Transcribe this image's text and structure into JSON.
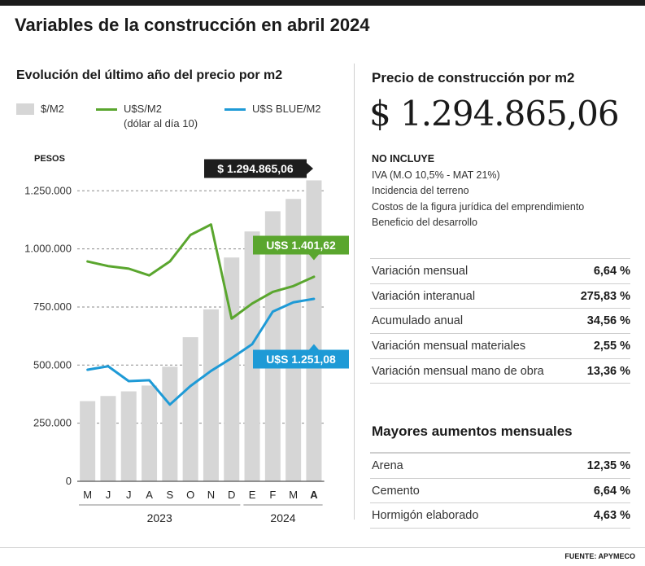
{
  "title": "Variables de la construcción en abril 2024",
  "chart_section": {
    "subtitle": "Evolución del último año del precio por m2"
  },
  "legend": {
    "bar_label": "$/M2",
    "line1_label": "U$S/M2",
    "line1_note": "(dólar al día 10)",
    "line2_label": "U$S BLUE/M2"
  },
  "colors": {
    "bars": "#d6d6d6",
    "usd_line": "#5aa62e",
    "blue_line": "#1e9ad6",
    "dark_callout": "#1e1e1e"
  },
  "chart_data": {
    "type": "bar",
    "y_unit_label": "PESOS",
    "categories": [
      "M",
      "J",
      "J",
      "A",
      "S",
      "O",
      "N",
      "D",
      "E",
      "F",
      "M",
      "A"
    ],
    "years": [
      {
        "label": "2023",
        "from": 0,
        "to": 7
      },
      {
        "label": "2024",
        "from": 8,
        "to": 11
      }
    ],
    "ylim": [
      0,
      1300000
    ],
    "yticks": [
      0,
      250000,
      500000,
      750000,
      1000000,
      1250000
    ],
    "ytick_labels": [
      "0",
      "250.000",
      "500.000",
      "750.000",
      "1.000.000",
      "1.250.000"
    ],
    "grid": "dashed",
    "series": [
      {
        "name": "$/M2",
        "kind": "bar",
        "values": [
          345000,
          367000,
          387000,
          412000,
          493000,
          620000,
          740000,
          963000,
          1075000,
          1162000,
          1215000,
          1294865.06
        ]
      },
      {
        "name": "U$S/M2",
        "kind": "line",
        "values": [
          946000,
          926000,
          915000,
          886000,
          946000,
          1060000,
          1105000,
          700000,
          765000,
          815000,
          840000,
          880000
        ]
      },
      {
        "name": "U$S BLUE/M2",
        "kind": "line",
        "values": [
          480000,
          495000,
          431000,
          435000,
          330000,
          410000,
          475000,
          530000,
          590000,
          730000,
          770000,
          785000
        ]
      }
    ],
    "callouts": [
      {
        "text": "$ 1.294.865,06"
      },
      {
        "text": "U$S 1.401,62"
      },
      {
        "text": "U$S 1.251,08"
      }
    ]
  },
  "price_section": {
    "title": "Precio de construcción por m2",
    "price": "$ 1.294.865,06",
    "excludes_head": "NO INCLUYE",
    "excludes": [
      "IVA (M.O 10,5% - MAT 21%)",
      "Incidencia del terreno",
      "Costos de la figura jurídica del emprendimiento",
      "Beneficio del desarrollo"
    ]
  },
  "stats": [
    {
      "label": "Variación mensual",
      "value": "6,64 %"
    },
    {
      "label": "Variación interanual",
      "value": "275,83 %"
    },
    {
      "label": "Acumulado anual",
      "value": "34,56 %"
    },
    {
      "label": "Variación mensual materiales",
      "value": "2,55 %"
    },
    {
      "label": "Variación mensual mano de obra",
      "value": "13,36 %"
    }
  ],
  "increases_section": {
    "title": "Mayores aumentos mensuales",
    "items": [
      {
        "label": "Arena",
        "value": "12,35 %"
      },
      {
        "label": "Cemento",
        "value": "6,64 %"
      },
      {
        "label": "Hormigón elaborado",
        "value": "4,63 %"
      }
    ]
  },
  "footer": {
    "source": "FUENTE: APYMECO"
  }
}
